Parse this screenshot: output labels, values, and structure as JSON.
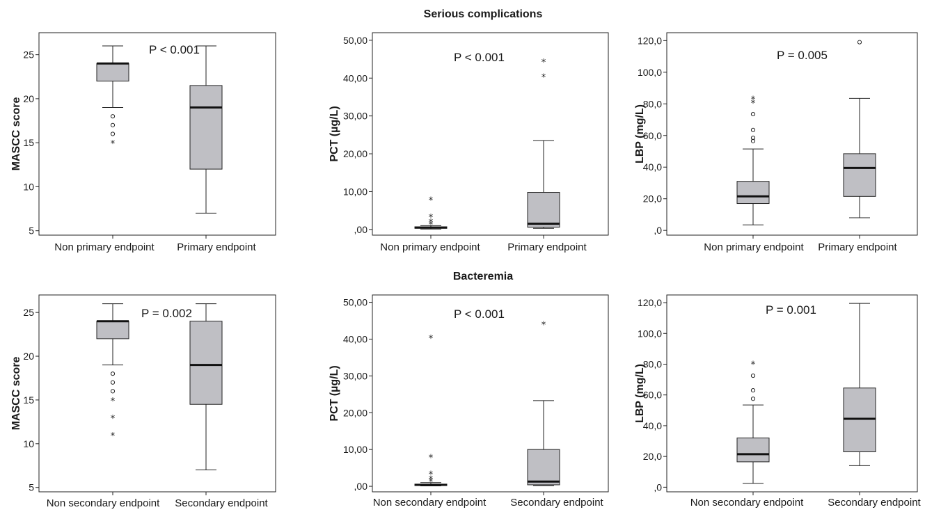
{
  "sections": [
    {
      "title": "Serious complications"
    },
    {
      "title": "Bacteremia"
    }
  ],
  "chart_data": [
    {
      "type": "box",
      "section": "Serious complications",
      "ylabel": "MASCC score",
      "pvalue": "P < 0.001",
      "ylim": [
        4.5,
        27.5
      ],
      "yticks": [
        5,
        10,
        15,
        20,
        25
      ],
      "ytick_labels": [
        "5",
        "10",
        "15",
        "20",
        "25"
      ],
      "categories": [
        "Non primary endpoint",
        "Primary endpoint"
      ],
      "boxes": [
        {
          "min": 19,
          "q1": 22,
          "median": 24,
          "q3": 24,
          "max": 26,
          "outliers_circle": [
            16,
            17,
            18
          ],
          "outliers_star": [
            15
          ]
        },
        {
          "min": 7,
          "q1": 12,
          "median": 19,
          "q3": 21.5,
          "max": 26,
          "outliers_circle": [],
          "outliers_star": []
        }
      ]
    },
    {
      "type": "box",
      "section": "Serious complications",
      "ylabel": "PCT (µg/L)",
      "pvalue": "P < 0.001",
      "ylim": [
        -1.5,
        52
      ],
      "yticks": [
        0,
        10,
        20,
        30,
        40,
        50
      ],
      "ytick_labels": [
        ",00",
        "10,00",
        "20,00",
        "30,00",
        "40,00",
        "50,00"
      ],
      "categories": [
        "Non primary endpoint",
        "Primary endpoint"
      ],
      "boxes": [
        {
          "min": 0.1,
          "q1": 0.3,
          "median": 0.5,
          "q3": 0.7,
          "max": 1.0,
          "outliers_circle": [],
          "outliers_star": [
            1.5,
            2.2,
            3.5,
            8.0
          ]
        },
        {
          "min": 0.3,
          "q1": 0.6,
          "median": 1.5,
          "q3": 9.8,
          "max": 23.5,
          "outliers_circle": [],
          "outliers_star": [
            40.5,
            44.5
          ]
        }
      ]
    },
    {
      "type": "box",
      "section": "Serious complications",
      "ylabel": "LBP (mg/L)",
      "pvalue": "P = 0.005",
      "ylim": [
        -3,
        125
      ],
      "yticks": [
        0,
        20,
        40,
        60,
        80,
        100,
        120
      ],
      "ytick_labels": [
        ",0",
        "20,0",
        "40,0",
        "60,0",
        "80,0",
        "100,0",
        "120,0"
      ],
      "categories": [
        "Non primary endpoint",
        "Primary endpoint"
      ],
      "boxes": [
        {
          "min": 3.5,
          "q1": 17,
          "median": 21.5,
          "q3": 31,
          "max": 51.5,
          "outliers_circle": [
            56.5,
            58.5,
            63.5,
            73.5
          ],
          "outliers_star": [
            81,
            83.5
          ]
        },
        {
          "min": 8,
          "q1": 21.5,
          "median": 39.5,
          "q3": 48.5,
          "max": 83.5,
          "outliers_circle": [
            119
          ],
          "outliers_star": []
        }
      ]
    },
    {
      "type": "box",
      "section": "Bacteremia",
      "ylabel": "MASCC score",
      "pvalue": "P = 0.002",
      "ylim": [
        4.5,
        27
      ],
      "yticks": [
        5,
        10,
        15,
        20,
        25
      ],
      "ytick_labels": [
        "5",
        "10",
        "15",
        "20",
        "25"
      ],
      "categories": [
        "Non secondary endpoint",
        "Secondary endpoint"
      ],
      "boxes": [
        {
          "min": 19,
          "q1": 22,
          "median": 24,
          "q3": 24,
          "max": 26,
          "outliers_circle": [
            16,
            17,
            18
          ],
          "outliers_star": [
            11,
            13,
            15
          ]
        },
        {
          "min": 7,
          "q1": 14.5,
          "median": 19,
          "q3": 24,
          "max": 26,
          "outliers_circle": [],
          "outliers_star": []
        }
      ]
    },
    {
      "type": "box",
      "section": "Bacteremia",
      "ylabel": "PCT (µg/L)",
      "pvalue": "P < 0.001",
      "ylim": [
        -1.5,
        52
      ],
      "yticks": [
        0,
        10,
        20,
        30,
        40,
        50
      ],
      "ytick_labels": [
        ",00",
        "10,00",
        "20,00",
        "30,00",
        "40,00",
        "50,00"
      ],
      "categories": [
        "Non secondary endpoint",
        "Secondary endpoint"
      ],
      "boxes": [
        {
          "min": 0.1,
          "q1": 0.2,
          "median": 0.4,
          "q3": 0.6,
          "max": 1.0,
          "outliers_circle": [],
          "outliers_star": [
            1.5,
            2.2,
            3.5,
            8.0,
            40.5
          ]
        },
        {
          "min": 0.2,
          "q1": 0.4,
          "median": 1.3,
          "q3": 10.0,
          "max": 23.3,
          "outliers_circle": [],
          "outliers_star": [
            44.2
          ]
        }
      ]
    },
    {
      "type": "box",
      "section": "Bacteremia",
      "ylabel": "LBP (mg/L)",
      "pvalue": "P = 0.001",
      "ylim": [
        -3,
        125
      ],
      "yticks": [
        0,
        20,
        40,
        60,
        80,
        100,
        120
      ],
      "ytick_labels": [
        ",0",
        "20,0",
        "40,0",
        "60,0",
        "80,0",
        "100,0",
        "120,0"
      ],
      "categories": [
        "Non secondary endpoint",
        "Secondary endpoint"
      ],
      "boxes": [
        {
          "min": 2.5,
          "q1": 16.5,
          "median": 21.5,
          "q3": 32,
          "max": 53.5,
          "outliers_circle": [
            57.5,
            63,
            72.5
          ],
          "outliers_star": [
            80.5
          ]
        },
        {
          "min": 14,
          "q1": 23,
          "median": 44.5,
          "q3": 64.5,
          "max": 119.5,
          "outliers_circle": [],
          "outliers_star": []
        }
      ]
    }
  ]
}
